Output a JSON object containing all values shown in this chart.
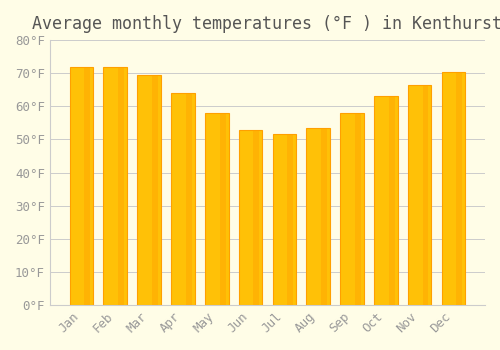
{
  "title": "Average monthly temperatures (°F ) in Kenthurst",
  "months": [
    "Jan",
    "Feb",
    "Mar",
    "Apr",
    "May",
    "Jun",
    "Jul",
    "Aug",
    "Sep",
    "Oct",
    "Nov",
    "Dec"
  ],
  "values": [
    72,
    72,
    69.5,
    64,
    58,
    53,
    51.5,
    53.5,
    58,
    63,
    66.5,
    70.5
  ],
  "bar_color_face": "#FFC107",
  "bar_color_edge": "#FFA000",
  "background_color": "#FFFDE7",
  "grid_color": "#CCCCCC",
  "text_color": "#999999",
  "ylim": [
    0,
    80
  ],
  "yticks": [
    0,
    10,
    20,
    30,
    40,
    50,
    60,
    70,
    80
  ],
  "title_fontsize": 12,
  "tick_fontsize": 9
}
